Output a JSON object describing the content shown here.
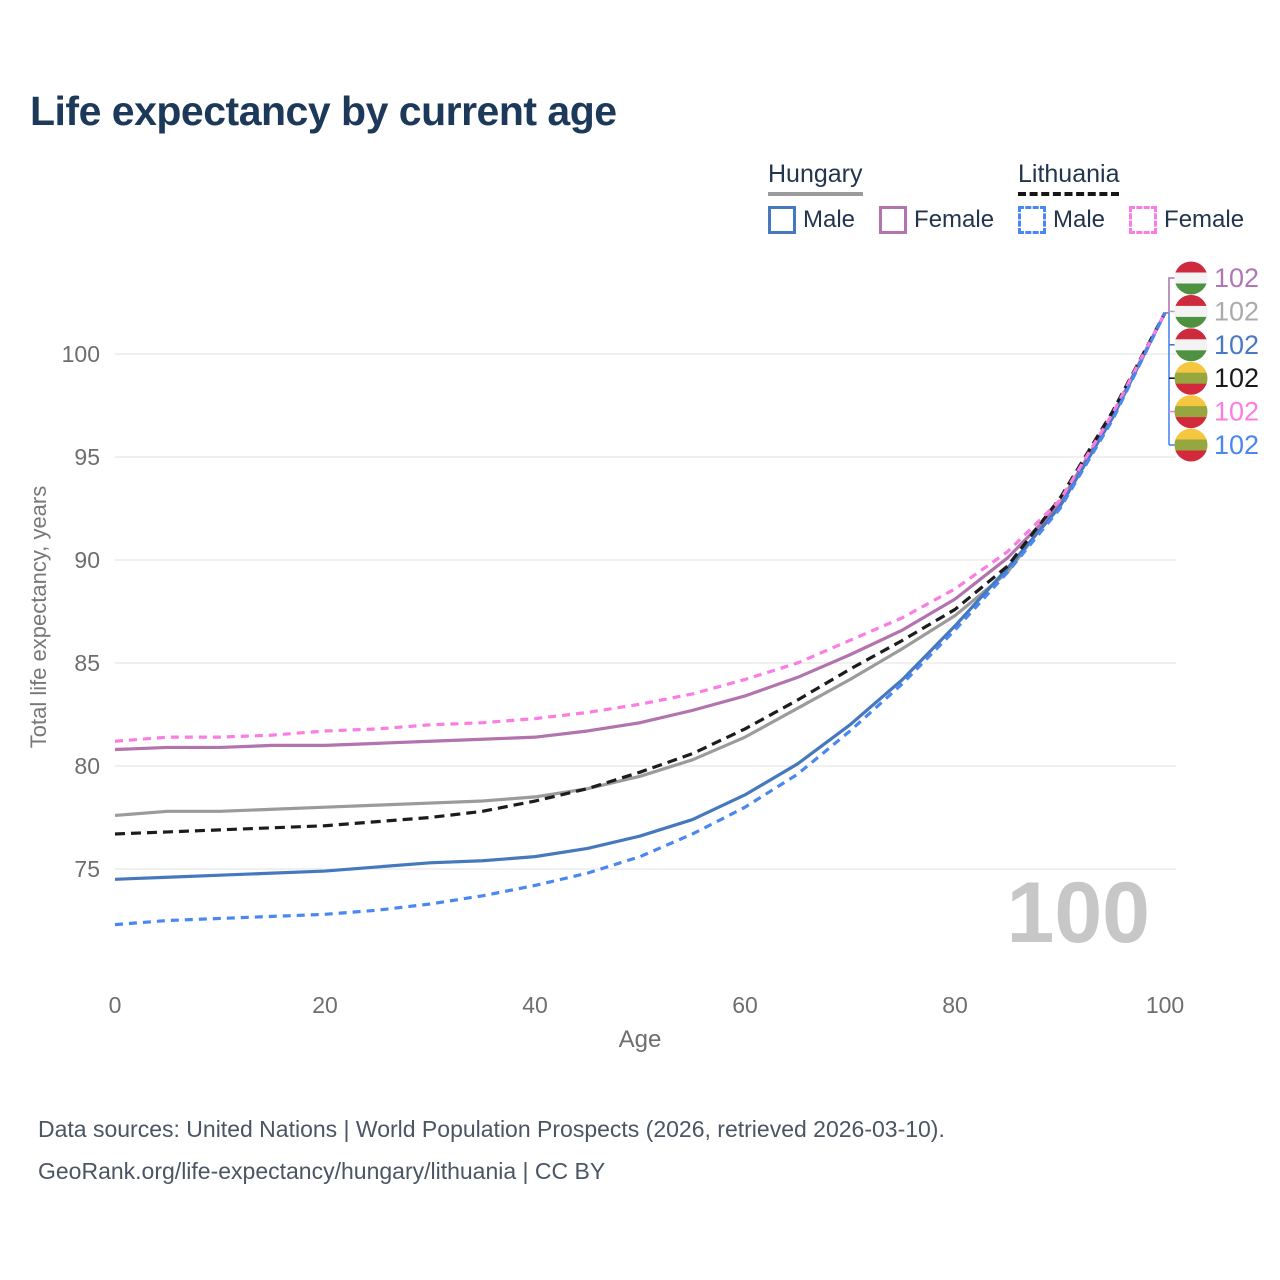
{
  "title": "Life expectancy by current age",
  "legend": {
    "groups": [
      {
        "name": "Hungary",
        "dashed": false,
        "underline_color": "#9b9b9b",
        "items": [
          {
            "label": "Male",
            "color": "#4678bd",
            "dashed": false
          },
          {
            "label": "Female",
            "color": "#b273ae",
            "dashed": false
          }
        ]
      },
      {
        "name": "Lithuania",
        "dashed": true,
        "underline_color": "#161616",
        "items": [
          {
            "label": "Male",
            "color": "#4b87f2",
            "dashed": true
          },
          {
            "label": "Female",
            "color": "#fb7ce3",
            "dashed": true
          }
        ]
      }
    ]
  },
  "chart_data": {
    "type": "line",
    "title": "Life expectancy by current age",
    "xlabel": "Age",
    "ylabel": "Total life expectancy, years",
    "watermark": "100",
    "x": [
      0,
      5,
      10,
      15,
      20,
      25,
      30,
      35,
      40,
      45,
      50,
      55,
      60,
      65,
      70,
      75,
      80,
      85,
      90,
      95,
      100
    ],
    "xticks": [
      0,
      20,
      40,
      60,
      80,
      100
    ],
    "yticks": [
      75,
      80,
      85,
      90,
      95,
      100
    ],
    "xlim": [
      0,
      100
    ],
    "ylim": [
      71,
      103
    ],
    "grid": "horizontal",
    "series": [
      {
        "id": "hungary-total",
        "name": "Hungary Total",
        "color": "#9b9b9b",
        "dash": "",
        "values": [
          77.6,
          77.8,
          77.8,
          77.9,
          78.0,
          78.1,
          78.2,
          78.3,
          78.5,
          78.9,
          79.5,
          80.3,
          81.4,
          82.8,
          84.2,
          85.7,
          87.3,
          89.4,
          92.8,
          97.0,
          102
        ]
      },
      {
        "id": "hungary-female",
        "name": "Hungary Female",
        "color": "#b273ae",
        "dash": "",
        "values": [
          80.8,
          80.9,
          80.9,
          81.0,
          81.0,
          81.1,
          81.2,
          81.3,
          81.4,
          81.7,
          82.1,
          82.7,
          83.4,
          84.3,
          85.4,
          86.6,
          88.1,
          90.1,
          92.7,
          97.0,
          102
        ]
      },
      {
        "id": "hungary-male",
        "name": "Hungary Male",
        "color": "#4678bd",
        "dash": "",
        "values": [
          74.5,
          74.6,
          74.7,
          74.8,
          74.9,
          75.1,
          75.3,
          75.4,
          75.6,
          76.0,
          76.6,
          77.4,
          78.6,
          80.1,
          82.0,
          84.2,
          86.8,
          89.6,
          92.6,
          96.9,
          102
        ]
      },
      {
        "id": "lithuania-total",
        "name": "Lithuania Total",
        "color": "#1c1c1c",
        "dash": "10 6",
        "values": [
          76.7,
          76.8,
          76.9,
          77.0,
          77.1,
          77.3,
          77.5,
          77.8,
          78.3,
          78.9,
          79.7,
          80.6,
          81.8,
          83.2,
          84.7,
          86.1,
          87.6,
          89.7,
          93.0,
          97.2,
          102
        ]
      },
      {
        "id": "lithuania-female",
        "name": "Lithuania Female",
        "color": "#fb7ce3",
        "dash": "8 6",
        "values": [
          81.2,
          81.4,
          81.4,
          81.5,
          81.7,
          81.8,
          82.0,
          82.1,
          82.3,
          82.6,
          83.0,
          83.5,
          84.2,
          85.0,
          86.1,
          87.2,
          88.6,
          90.4,
          92.9,
          97.1,
          102
        ]
      },
      {
        "id": "lithuania-male",
        "name": "Lithuania Male",
        "color": "#4b87f2",
        "dash": "8 6",
        "values": [
          72.3,
          72.5,
          72.6,
          72.7,
          72.8,
          73.0,
          73.3,
          73.7,
          74.2,
          74.8,
          75.6,
          76.7,
          78.0,
          79.6,
          81.7,
          84.0,
          86.6,
          89.4,
          92.5,
          96.8,
          102
        ]
      }
    ],
    "flags": {
      "hungary": [
        "#cd2a3e",
        "#f3f3f3",
        "#4e9140"
      ],
      "lithuania": [
        "#f5c640",
        "#96a73f",
        "#d2293c"
      ]
    },
    "end_labels": [
      {
        "series": "hungary-female",
        "flag": "hungary",
        "value": "102",
        "color": "#b077b4"
      },
      {
        "series": "hungary-total",
        "flag": "hungary",
        "value": "102",
        "color": "#ababab"
      },
      {
        "series": "hungary-male",
        "flag": "hungary",
        "value": "102",
        "color": "#4a79c4"
      },
      {
        "series": "lithuania-total",
        "flag": "lithuania",
        "value": "102",
        "color": "#1a1a1a"
      },
      {
        "series": "lithuania-female",
        "flag": "lithuania",
        "value": "102",
        "color": "#fb7ce3"
      },
      {
        "series": "lithuania-male",
        "flag": "lithuania",
        "value": "102",
        "color": "#4b87f2"
      }
    ]
  },
  "footer": {
    "line1": "Data sources: United Nations | World Population Prospects (2026, retrieved 2026-03-10).",
    "line2": "GeoRank.org/life-expectancy/hungary/lithuania | CC BY"
  }
}
